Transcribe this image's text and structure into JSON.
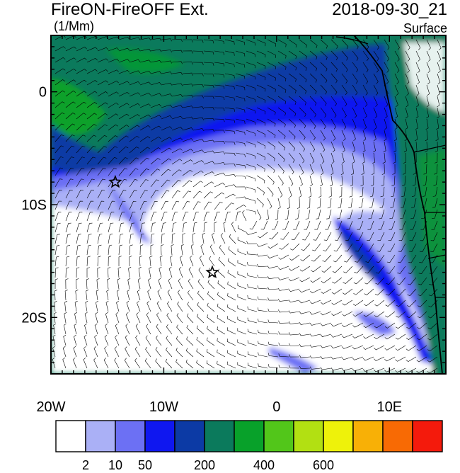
{
  "title": "FireON-FireOFF Ext.",
  "datetime": "2018-09-30_21",
  "units": "(1/Mm)",
  "level": "Surface",
  "map": {
    "lon_range": [
      -20,
      15
    ],
    "lat_range": [
      -25,
      5
    ],
    "lon_ticks": [
      {
        "lon": -20,
        "label": "20W"
      },
      {
        "lon": -10,
        "label": "10W"
      },
      {
        "lon": 0,
        "label": "0"
      },
      {
        "lon": 10,
        "label": "10E"
      }
    ],
    "lat_ticks": [
      {
        "lat": 0,
        "label": "0"
      },
      {
        "lat": -10,
        "label": "10S"
      },
      {
        "lat": -20,
        "label": "20S"
      }
    ],
    "markers": [
      {
        "type": "star-icon",
        "lon": -14.3,
        "lat": -8.0
      },
      {
        "type": "star-icon",
        "lon": -5.7,
        "lat": -16.0
      }
    ],
    "overlay": "wind-barbs"
  },
  "colorbar": {
    "colors": [
      "#ffffff",
      "#aab0f6",
      "#6c70f4",
      "#0f17f0",
      "#0c3aa5",
      "#0b7a5c",
      "#08a12a",
      "#52c61a",
      "#b2e012",
      "#eef20a",
      "#f8b006",
      "#f86a04",
      "#f41a0c"
    ],
    "labels": [
      "2",
      "10",
      "50",
      "200",
      "400",
      "600"
    ],
    "label_boundaries": [
      1,
      2,
      3,
      5,
      7,
      9
    ]
  }
}
